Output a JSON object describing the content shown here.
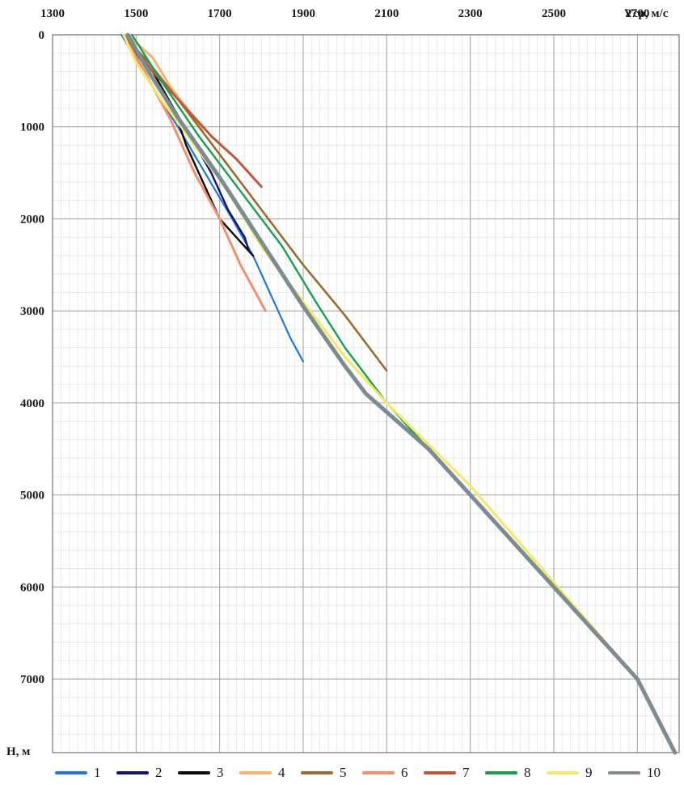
{
  "chart_data": {
    "type": "line",
    "title": "",
    "xlabel": "Vср, м/с",
    "ylabel": "H, м",
    "xlim": [
      1300,
      2800
    ],
    "ylim": [
      0,
      7800
    ],
    "y_inverted": true,
    "x_axis_position": "top",
    "grid": true,
    "x_ticks": [
      "1300",
      "1500",
      "1700",
      "1900",
      "2100",
      "2300",
      "2500",
      "2700"
    ],
    "y_ticks": [
      "0",
      "1000",
      "2000",
      "3000",
      "4000",
      "5000",
      "6000",
      "7000"
    ],
    "legend_position": "bottom",
    "series": [
      {
        "name": "1",
        "color": "#1f78d6",
        "width": 2.2,
        "points": [
          [
            1465,
            0
          ],
          [
            1530,
            500
          ],
          [
            1600,
            1000
          ],
          [
            1665,
            1500
          ],
          [
            1730,
            2000
          ],
          [
            1780,
            2400
          ],
          [
            1810,
            2700
          ],
          [
            1840,
            3000
          ],
          [
            1870,
            3300
          ],
          [
            1900,
            3550
          ]
        ]
      },
      {
        "name": "2",
        "color": "#14146e",
        "width": 2.4,
        "points": [
          [
            1470,
            0
          ],
          [
            1530,
            400
          ],
          [
            1590,
            800
          ],
          [
            1630,
            1100
          ],
          [
            1680,
            1500
          ],
          [
            1720,
            1900
          ],
          [
            1760,
            2200
          ],
          [
            1770,
            2350
          ]
        ]
      },
      {
        "name": "3",
        "color": "#0a0a0a",
        "width": 2.4,
        "points": [
          [
            1470,
            0
          ],
          [
            1540,
            400
          ],
          [
            1590,
            800
          ],
          [
            1620,
            1200
          ],
          [
            1660,
            1600
          ],
          [
            1700,
            2000
          ],
          [
            1740,
            2200
          ],
          [
            1780,
            2400
          ]
        ]
      },
      {
        "name": "4",
        "color": "#f7b36b",
        "width": 3,
        "points": [
          [
            1480,
            0
          ],
          [
            1540,
            250
          ],
          [
            1580,
            550
          ],
          [
            1630,
            850
          ],
          [
            1660,
            1050
          ]
        ]
      },
      {
        "name": "5",
        "color": "#9c6b2e",
        "width": 2.6,
        "points": [
          [
            1470,
            0
          ],
          [
            1530,
            300
          ],
          [
            1600,
            700
          ],
          [
            1700,
            1300
          ],
          [
            1800,
            1900
          ],
          [
            1900,
            2500
          ],
          [
            2000,
            3050
          ],
          [
            2100,
            3650
          ]
        ]
      },
      {
        "name": "6",
        "color": "#f28f6e",
        "width": 3,
        "points": [
          [
            1470,
            0
          ],
          [
            1520,
            400
          ],
          [
            1580,
            900
          ],
          [
            1640,
            1500
          ],
          [
            1700,
            2000
          ],
          [
            1750,
            2500
          ],
          [
            1810,
            3000
          ]
        ]
      },
      {
        "name": "7",
        "color": "#c0553a",
        "width": 3,
        "points": [
          [
            1470,
            0
          ],
          [
            1540,
            400
          ],
          [
            1600,
            700
          ],
          [
            1680,
            1100
          ],
          [
            1740,
            1350
          ],
          [
            1800,
            1650
          ]
        ]
      },
      {
        "name": "8",
        "color": "#16a050",
        "width": 2.4,
        "points": [
          [
            1490,
            0
          ],
          [
            1560,
            500
          ],
          [
            1650,
            1100
          ],
          [
            1750,
            1700
          ],
          [
            1850,
            2300
          ],
          [
            1930,
            2900
          ],
          [
            2000,
            3400
          ],
          [
            2100,
            4000
          ],
          [
            2300,
            5000
          ],
          [
            2500,
            6000
          ],
          [
            2700,
            7000
          ],
          [
            2790,
            7800
          ]
        ]
      },
      {
        "name": "9",
        "color": "#f3e96a",
        "width": 3.2,
        "points": [
          [
            1470,
            0
          ],
          [
            1500,
            300
          ],
          [
            1560,
            700
          ],
          [
            1640,
            1200
          ],
          [
            1720,
            1700
          ],
          [
            1800,
            2300
          ],
          [
            1900,
            2900
          ],
          [
            2000,
            3500
          ],
          [
            2100,
            4000
          ],
          [
            2200,
            4450
          ],
          [
            2300,
            4900
          ],
          [
            2500,
            5950
          ],
          [
            2700,
            7000
          ],
          [
            2790,
            7800
          ]
        ]
      },
      {
        "name": "10",
        "color": "#7b8c93",
        "width": 5,
        "points": [
          [
            1480,
            0
          ],
          [
            1530,
            400
          ],
          [
            1600,
            900
          ],
          [
            1700,
            1550
          ],
          [
            1800,
            2250
          ],
          [
            1900,
            2950
          ],
          [
            2000,
            3600
          ],
          [
            2050,
            3900
          ],
          [
            2200,
            4500
          ],
          [
            2300,
            5000
          ],
          [
            2500,
            6000
          ],
          [
            2700,
            7000
          ],
          [
            2790,
            7800
          ]
        ]
      }
    ]
  }
}
